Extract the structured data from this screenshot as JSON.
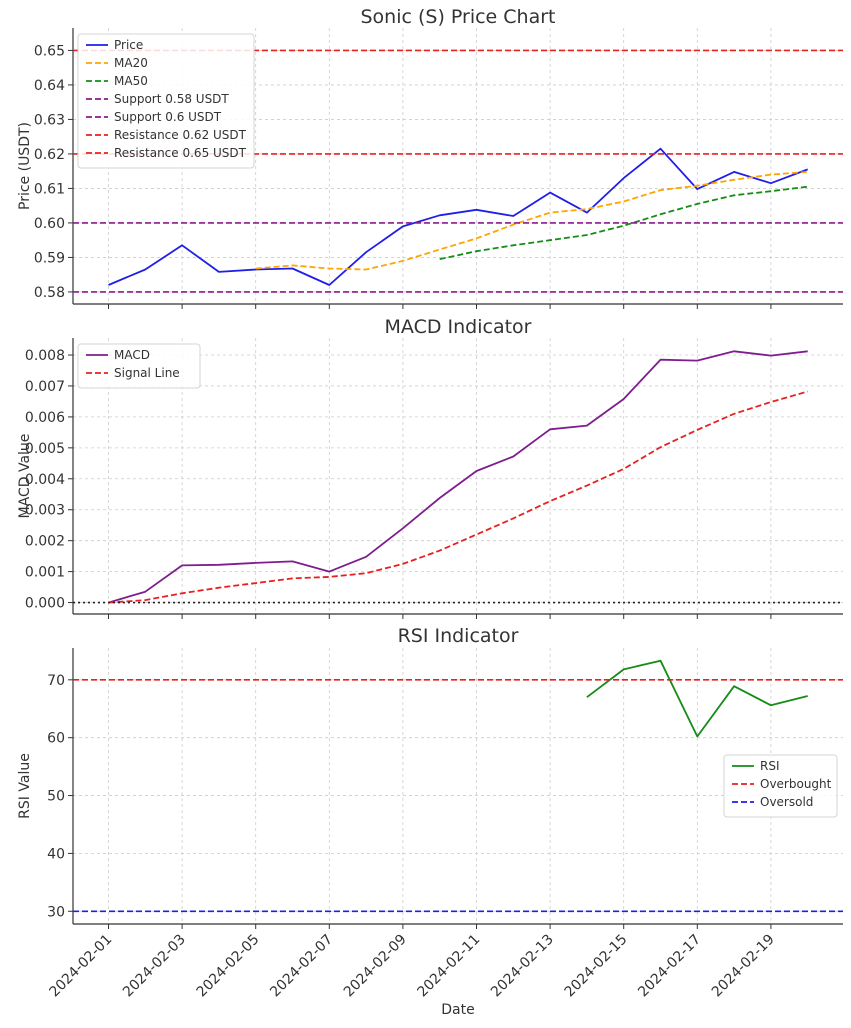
{
  "colors": {
    "price": "#1f1fe8",
    "ma20": "#ffa500",
    "ma50": "#168c16",
    "support": "#8b1a8b",
    "resistance": "#e82020",
    "macd": "#7f1d8f",
    "signal": "#e82020",
    "rsi": "#168c16",
    "overbought": "#e82020",
    "oversold": "#1f1fe8",
    "zero_line": "#222222",
    "grid": "#cccccc"
  },
  "chart_data": [
    {
      "type": "line",
      "title": "Sonic (S) Price Chart",
      "ylabel": "Price (USDT)",
      "xlabel": "",
      "ylim": [
        0.5765,
        0.6565
      ],
      "yticks": [
        0.58,
        0.59,
        0.6,
        0.61,
        0.62,
        0.63,
        0.64,
        0.65
      ],
      "ytick_labels": [
        "0.58",
        "0.59",
        "0.60",
        "0.61",
        "0.62",
        "0.63",
        "0.64",
        "0.65"
      ],
      "grid": true,
      "legend_position": "top-left",
      "x": [
        "2024-02-01",
        "2024-02-02",
        "2024-02-03",
        "2024-02-04",
        "2024-02-05",
        "2024-02-06",
        "2024-02-07",
        "2024-02-08",
        "2024-02-09",
        "2024-02-10",
        "2024-02-11",
        "2024-02-12",
        "2024-02-13",
        "2024-02-14",
        "2024-02-15",
        "2024-02-16",
        "2024-02-17",
        "2024-02-18",
        "2024-02-19",
        "2024-02-20"
      ],
      "series": [
        {
          "name": "Price",
          "style": "solid",
          "color_key": "price",
          "values": [
            0.582,
            0.5865,
            0.5935,
            0.5858,
            0.5865,
            0.5868,
            0.582,
            0.5915,
            0.599,
            0.6022,
            0.6038,
            0.602,
            0.6088,
            0.603,
            0.613,
            0.6215,
            0.6098,
            0.6148,
            0.6115,
            0.6155
          ]
        },
        {
          "name": "MA20",
          "style": "dashed",
          "color_key": "ma20",
          "values": [
            null,
            null,
            null,
            null,
            0.5868,
            0.5877,
            0.5868,
            0.5865,
            0.589,
            0.5923,
            0.5955,
            0.5995,
            0.603,
            0.604,
            0.6062,
            0.6095,
            0.6108,
            0.6125,
            0.614,
            0.6148
          ]
        },
        {
          "name": "MA50",
          "style": "dashed",
          "color_key": "ma50",
          "values": [
            null,
            null,
            null,
            null,
            null,
            null,
            null,
            null,
            null,
            0.5895,
            0.5918,
            0.5935,
            0.595,
            0.5965,
            0.5992,
            0.6025,
            0.6055,
            0.608,
            0.6092,
            0.6105
          ]
        },
        {
          "name": "Support 0.58 USDT",
          "style": "dashed",
          "color_key": "support",
          "hline": 0.58
        },
        {
          "name": "Support 0.6 USDT",
          "style": "dashed",
          "color_key": "support",
          "hline": 0.6
        },
        {
          "name": "Resistance 0.62 USDT",
          "style": "dashed",
          "color_key": "resistance",
          "hline": 0.62
        },
        {
          "name": "Resistance 0.65 USDT",
          "style": "dashed",
          "color_key": "resistance",
          "hline": 0.65
        }
      ]
    },
    {
      "type": "line",
      "title": "MACD Indicator",
      "ylabel": "MACD Value",
      "xlabel": "",
      "ylim": [
        -0.00037,
        0.00855
      ],
      "yticks": [
        0,
        0.001,
        0.002,
        0.003,
        0.004,
        0.005,
        0.006,
        0.007,
        0.008
      ],
      "ytick_labels": [
        "0.000",
        "0.001",
        "0.002",
        "0.003",
        "0.004",
        "0.005",
        "0.006",
        "0.007",
        "0.008"
      ],
      "grid": true,
      "legend_position": "top-left",
      "x": [
        "2024-02-01",
        "2024-02-02",
        "2024-02-03",
        "2024-02-04",
        "2024-02-05",
        "2024-02-06",
        "2024-02-07",
        "2024-02-08",
        "2024-02-09",
        "2024-02-10",
        "2024-02-11",
        "2024-02-12",
        "2024-02-13",
        "2024-02-14",
        "2024-02-15",
        "2024-02-16",
        "2024-02-17",
        "2024-02-18",
        "2024-02-19",
        "2024-02-20"
      ],
      "series": [
        {
          "name": "MACD",
          "style": "solid",
          "color_key": "macd",
          "values": [
            0.0,
            0.00035,
            0.0012,
            0.00122,
            0.00128,
            0.00133,
            0.001,
            0.00148,
            0.0024,
            0.00338,
            0.00425,
            0.00472,
            0.0056,
            0.00572,
            0.00658,
            0.00785,
            0.00782,
            0.00812,
            0.00798,
            0.00812
          ]
        },
        {
          "name": "Signal Line",
          "style": "dashed",
          "color_key": "signal",
          "values": [
            0.0,
            8e-05,
            0.0003,
            0.00048,
            0.00063,
            0.00078,
            0.00083,
            0.00095,
            0.00125,
            0.00168,
            0.0022,
            0.00272,
            0.00328,
            0.00378,
            0.00432,
            0.00502,
            0.00558,
            0.0061,
            0.00648,
            0.00682
          ]
        },
        {
          "name": "",
          "style": "dotted",
          "color_key": "zero_line",
          "hline": 0,
          "in_legend": false
        }
      ]
    },
    {
      "type": "line",
      "title": "RSI Indicator",
      "ylabel": "RSI Value",
      "xlabel": "Date",
      "ylim": [
        27.8,
        75.5
      ],
      "yticks": [
        30,
        40,
        50,
        60,
        70
      ],
      "ytick_labels": [
        "30",
        "40",
        "50",
        "60",
        "70"
      ],
      "grid": true,
      "legend_position": "center-right",
      "x": [
        "2024-02-01",
        "2024-02-02",
        "2024-02-03",
        "2024-02-04",
        "2024-02-05",
        "2024-02-06",
        "2024-02-07",
        "2024-02-08",
        "2024-02-09",
        "2024-02-10",
        "2024-02-11",
        "2024-02-12",
        "2024-02-13",
        "2024-02-14",
        "2024-02-15",
        "2024-02-16",
        "2024-02-17",
        "2024-02-18",
        "2024-02-19",
        "2024-02-20"
      ],
      "xtick_labels": [
        "2024-02-01",
        "2024-02-03",
        "2024-02-05",
        "2024-02-07",
        "2024-02-09",
        "2024-02-11",
        "2024-02-13",
        "2024-02-15",
        "2024-02-17",
        "2024-02-19"
      ],
      "series": [
        {
          "name": "RSI",
          "style": "solid",
          "color_key": "rsi",
          "values": [
            null,
            null,
            null,
            null,
            null,
            null,
            null,
            null,
            null,
            null,
            null,
            null,
            null,
            67.0,
            71.8,
            73.3,
            60.2,
            68.9,
            65.6,
            67.2
          ]
        },
        {
          "name": "Overbought",
          "style": "dashed",
          "color_key": "overbought",
          "hline": 70
        },
        {
          "name": "Oversold",
          "style": "dashed",
          "color_key": "oversold",
          "hline": 30
        }
      ]
    }
  ]
}
